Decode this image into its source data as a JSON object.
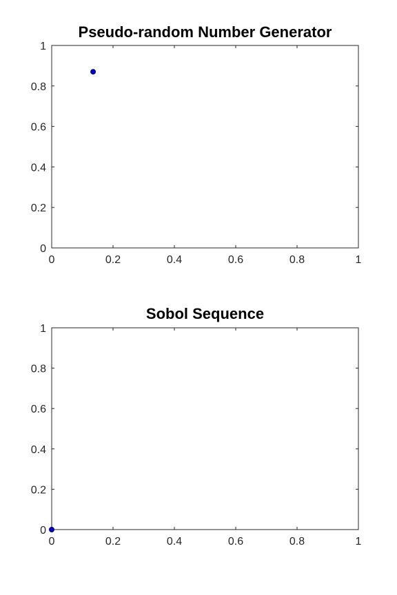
{
  "chart_data": [
    {
      "type": "scatter",
      "title": "Pseudo-random Number Generator",
      "xlabel": "",
      "ylabel": "",
      "xlim": [
        0,
        1
      ],
      "ylim": [
        0,
        1
      ],
      "xticks": [
        "0",
        "0.2",
        "0.4",
        "0.6",
        "0.8",
        "1"
      ],
      "yticks": [
        "0",
        "0.2",
        "0.4",
        "0.6",
        "0.8",
        "1"
      ],
      "grid": true,
      "marker_color": "#0000cc",
      "points": [
        {
          "x": 0.135,
          "y": 0.87
        }
      ]
    },
    {
      "type": "scatter",
      "title": "Sobol Sequence",
      "xlabel": "",
      "ylabel": "",
      "xlim": [
        0,
        1
      ],
      "ylim": [
        0,
        1
      ],
      "xticks": [
        "0",
        "0.2",
        "0.4",
        "0.6",
        "0.8",
        "1"
      ],
      "yticks": [
        "0",
        "0.2",
        "0.4",
        "0.6",
        "0.8",
        "1"
      ],
      "grid": true,
      "marker_color": "#0000cc",
      "points": [
        {
          "x": 0,
          "y": 0
        }
      ]
    }
  ]
}
